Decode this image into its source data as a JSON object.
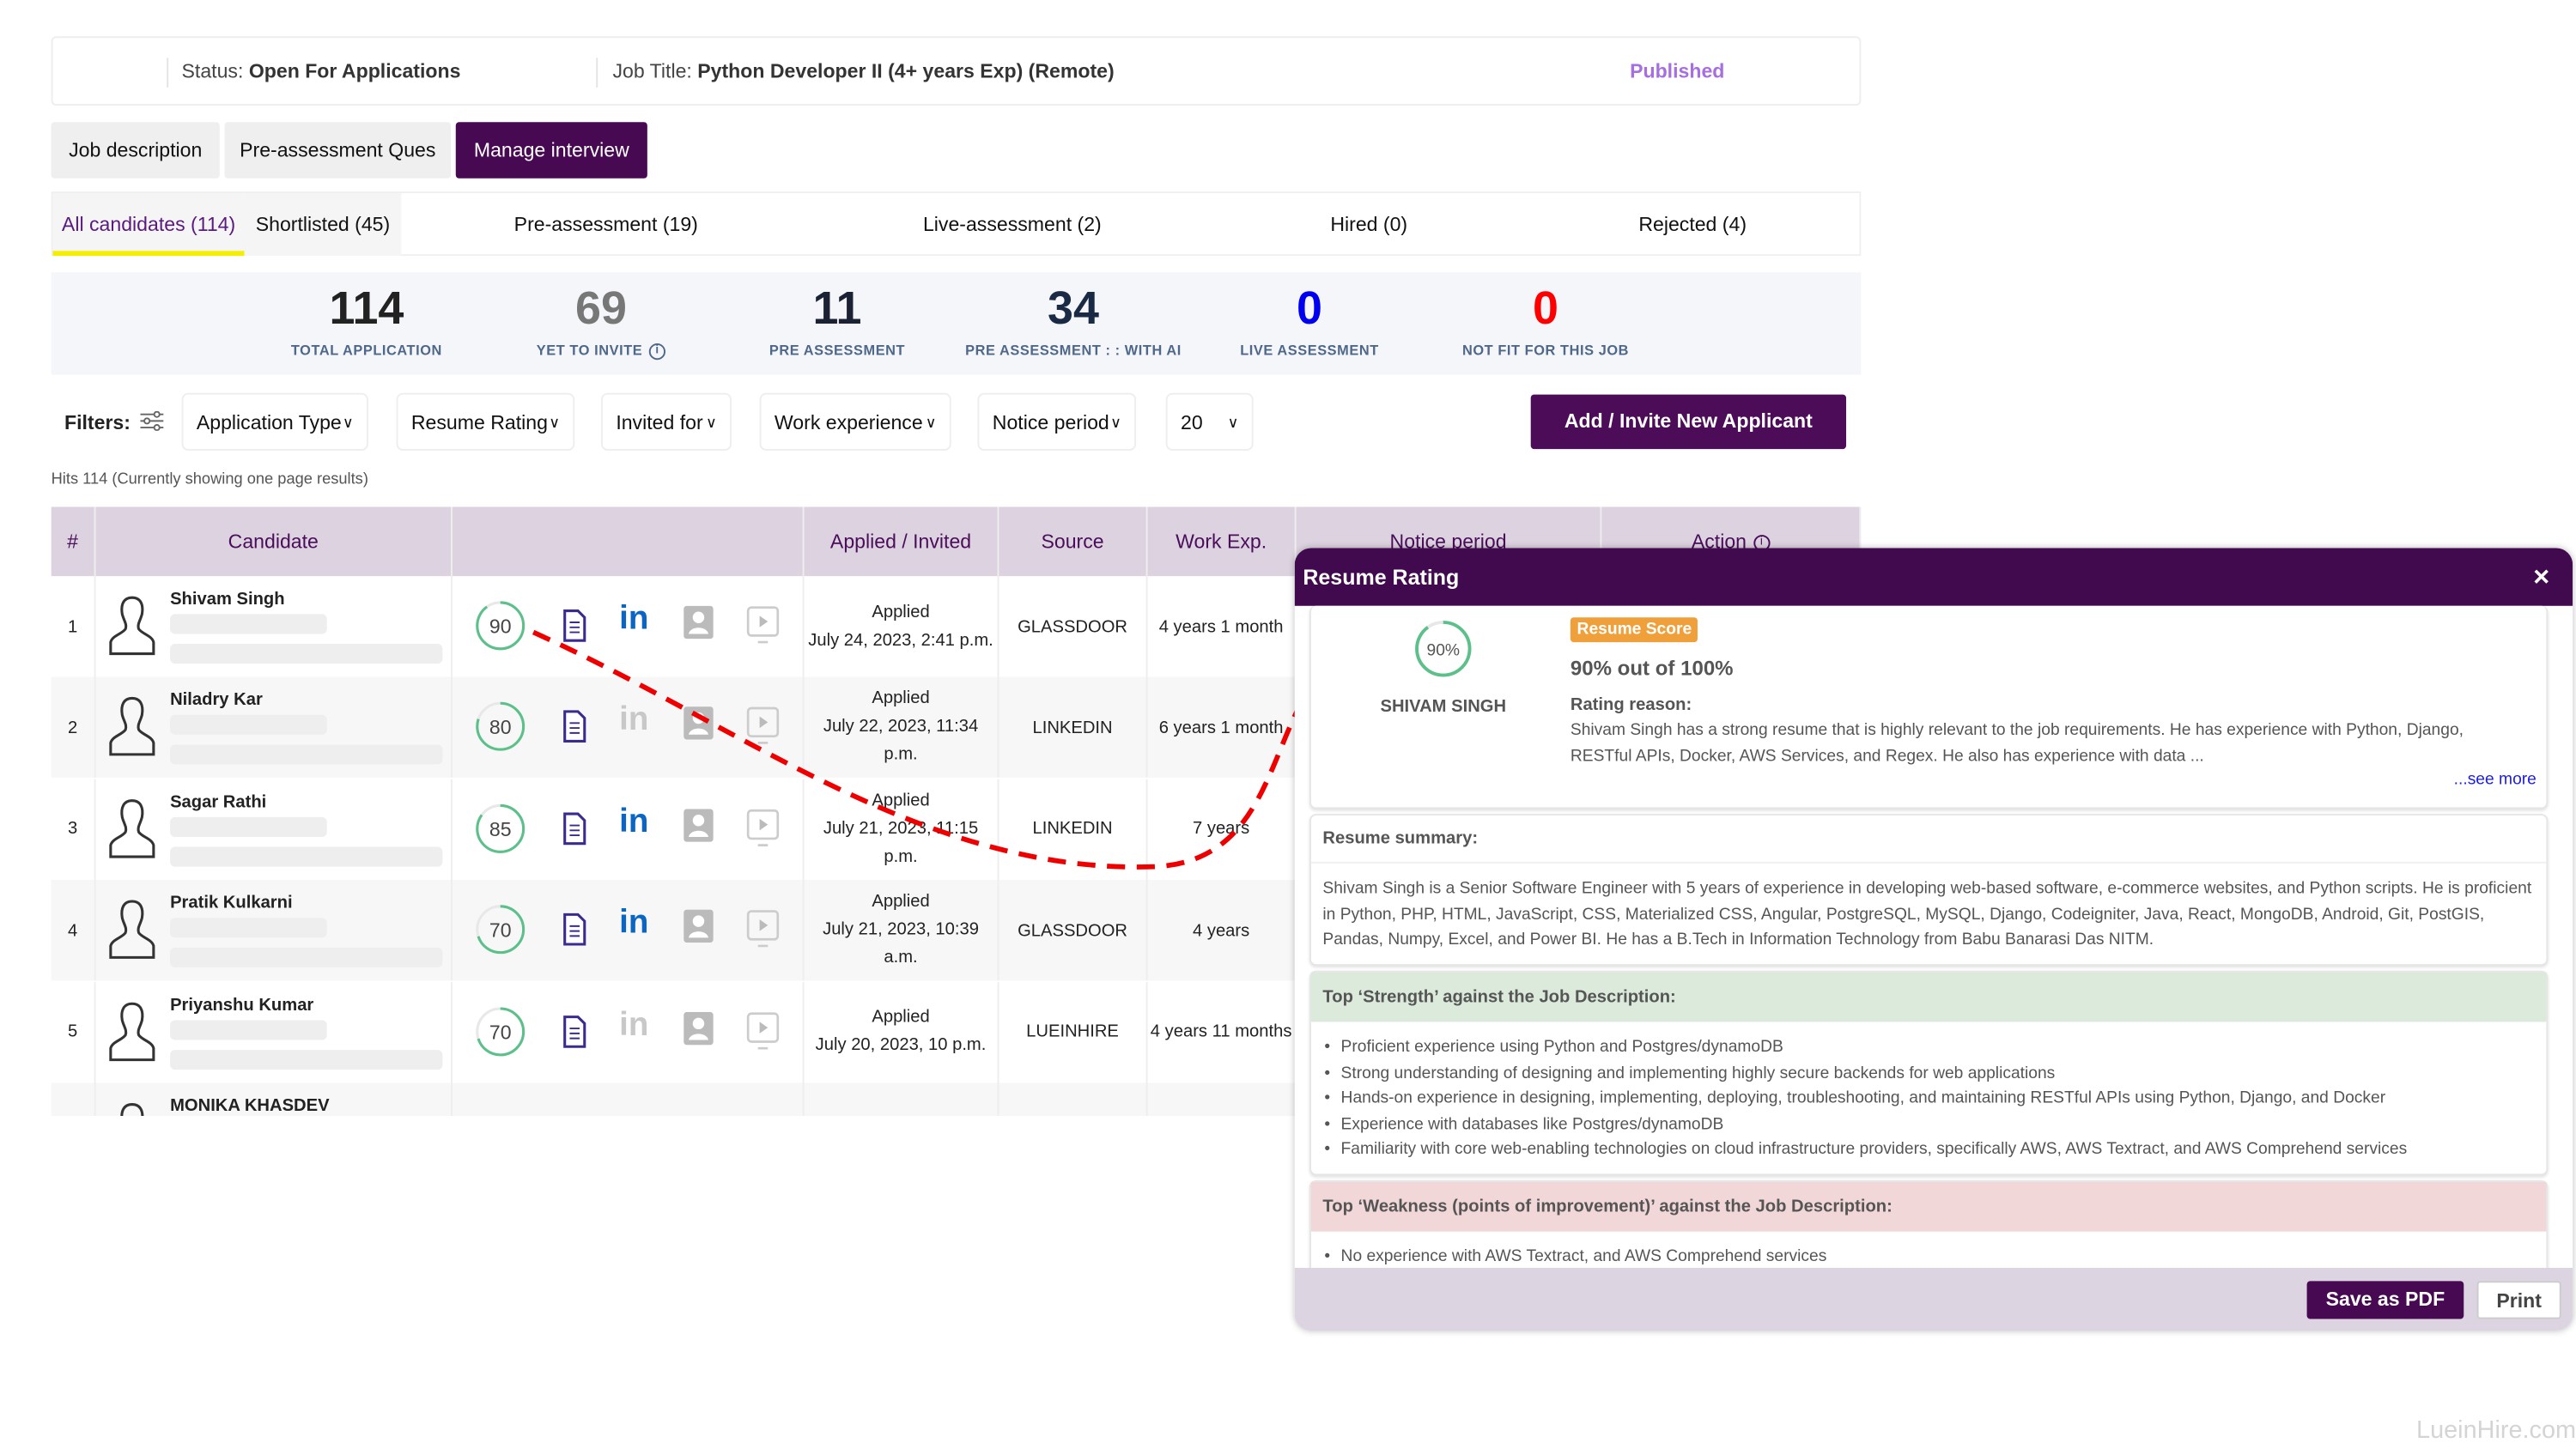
{
  "header": {
    "status_label": "Status:",
    "status_value": "Open For Applications",
    "job_title_label": "Job Title:",
    "job_title_value": "Python Developer II (4+ years Exp) (Remote)",
    "publish_state": "Published"
  },
  "tabs": [
    "Job description",
    "Pre-assessment Ques",
    "Manage interview"
  ],
  "active_tab": "Manage interview",
  "subtabs": [
    "All candidates (114)",
    "Shortlisted (45)",
    "Pre-assessment (19)",
    "Live-assessment (2)",
    "Hired (0)",
    "Rejected (4)"
  ],
  "stats": [
    {
      "value": "114",
      "label": "TOTAL APPLICATION",
      "color": "#222222"
    },
    {
      "value": "69",
      "label": "YET TO INVITE",
      "color": "#777777"
    },
    {
      "value": "11",
      "label": "PRE ASSESSMENT",
      "color": "#1a2233"
    },
    {
      "value": "34",
      "label": "PRE ASSESSMENT : : WITH AI",
      "color": "#1a2a44"
    },
    {
      "value": "0",
      "label": "LIVE ASSESSMENT",
      "color": "#0000ee"
    },
    {
      "value": "0",
      "label": "NOT FIT FOR THIS JOB",
      "color": "#ff0000"
    }
  ],
  "filters": {
    "label": "Filters:",
    "dropdowns": [
      "Application Type",
      "Resume Rating",
      "Invited for",
      "Work experience",
      "Notice period",
      "20"
    ],
    "add_button": "Add / Invite New Applicant"
  },
  "hits": "Hits 114 (Currently showing one page results)",
  "table": {
    "headers": [
      "#",
      "Candidate",
      "",
      "Applied / Invited",
      "Source",
      "Work Exp.",
      "Notice period",
      "Action"
    ],
    "rows": [
      {
        "n": "1",
        "name": "Shivam Singh",
        "score": 90,
        "linkedin": true,
        "status": "Applied",
        "date": "July 24, 2023, 2:41 p.m.",
        "source": "GLASSDOOR",
        "exp": "4 years 1 month"
      },
      {
        "n": "2",
        "name": "Niladry Kar",
        "score": 80,
        "linkedin": false,
        "status": "Applied",
        "date": "July 22, 2023, 11:34 p.m.",
        "source": "LINKEDIN",
        "exp": "6 years 1 month"
      },
      {
        "n": "3",
        "name": "Sagar Rathi",
        "score": 85,
        "linkedin": true,
        "status": "Applied",
        "date": "July 21, 2023, 11:15 p.m.",
        "source": "LINKEDIN",
        "exp": "7 years"
      },
      {
        "n": "4",
        "name": "Pratik Kulkarni",
        "score": 70,
        "linkedin": true,
        "status": "Applied",
        "date": "July 21, 2023, 10:39 a.m.",
        "source": "GLASSDOOR",
        "exp": "4 years"
      },
      {
        "n": "5",
        "name": "Priyanshu Kumar",
        "score": 70,
        "linkedin": false,
        "status": "Applied",
        "date": "July 20, 2023, 10 p.m.",
        "source": "LUEINHIRE",
        "exp": "4 years 11 months"
      },
      {
        "n": "",
        "name": "MONIKA KHASDEV",
        "score": null,
        "linkedin": true,
        "status": "",
        "date": "",
        "source": "",
        "exp": ""
      }
    ]
  },
  "modal": {
    "title": "Resume Rating",
    "close": "×",
    "score_percent": "90%",
    "score": 90,
    "candidate": "SHIVAM SINGH",
    "badge": "Resume Score",
    "score_text": "90% out of 100%",
    "rating_reason_label": "Rating reason:",
    "rating_reason": "Shivam Singh has a strong resume that is highly relevant to the job requirements. He has experience with Python, Django, RESTful APIs, Docker, AWS Services, and Regex. He also has experience with data ...",
    "see_more": "...see more",
    "summary_label": "Resume summary:",
    "summary": "Shivam Singh is a Senior Software Engineer with 5 years of experience in developing web-based software, e-commerce websites, and Python scripts. He is proficient in Python, PHP, HTML, JavaScript, CSS, Materialized CSS, Angular, PostgreSQL, MySQL, Django, Codeigniter, Java, React, MongoDB, Android, Git, PostGIS, Pandas, Numpy, Excel, and Power BI. He has a B.Tech in Information Technology from Babu Banarasi Das NITM.",
    "strength_label": "Top ‘Strength’ against the Job Description:",
    "strengths": [
      "Proficient experience using Python and Postgres/dynamoDB",
      "Strong understanding of designing and implementing highly secure backends for web applications",
      "Hands-on experience in designing, implementing, deploying, troubleshooting, and maintaining RESTful APIs using Python, Django, and Docker",
      "Experience with databases like Postgres/dynamoDB",
      "Familiarity with core web-enabling technologies on cloud infrastructure providers, specifically AWS, AWS Textract, and AWS Comprehend services"
    ],
    "weakness_label": "Top ‘Weakness (points of improvement)’ against the Job Description:",
    "weaknesses": [
      "No experience with AWS Textract, and AWS Comprehend services"
    ],
    "save_pdf": "Save as PDF",
    "print": "Print"
  },
  "watermark": "LueinHire.com",
  "colors": {
    "brand": "#420a4e",
    "score_ring": "#5cc08a",
    "badge": "#f0a03a",
    "linkedin": "#0a66c2",
    "annotation": "#ee0000"
  }
}
